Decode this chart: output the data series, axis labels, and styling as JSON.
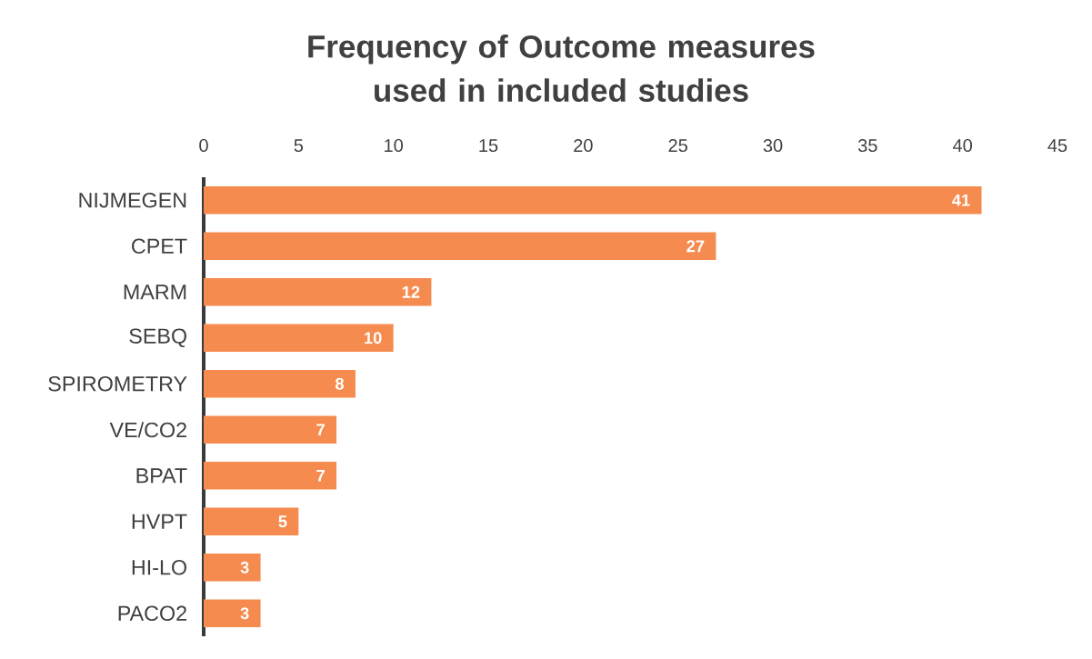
{
  "chart_data": {
    "type": "bar",
    "orientation": "horizontal",
    "title": "Frequency of Outcome measures used in included studies",
    "categories": [
      "NIJMEGEN",
      "CPET",
      "MARM",
      "SEBQ",
      "SPIROMETRY",
      "VE/CO2",
      "BPAT",
      "HVPT",
      "HI-LO",
      "PACO2"
    ],
    "values": [
      41,
      27,
      12,
      10,
      8,
      7,
      7,
      5,
      3,
      3
    ],
    "color": "#f68b4f",
    "xlim": [
      0,
      45
    ],
    "xticks": [
      0,
      5,
      10,
      15,
      20,
      25,
      30,
      35,
      40,
      45
    ],
    "data_labels": true
  }
}
